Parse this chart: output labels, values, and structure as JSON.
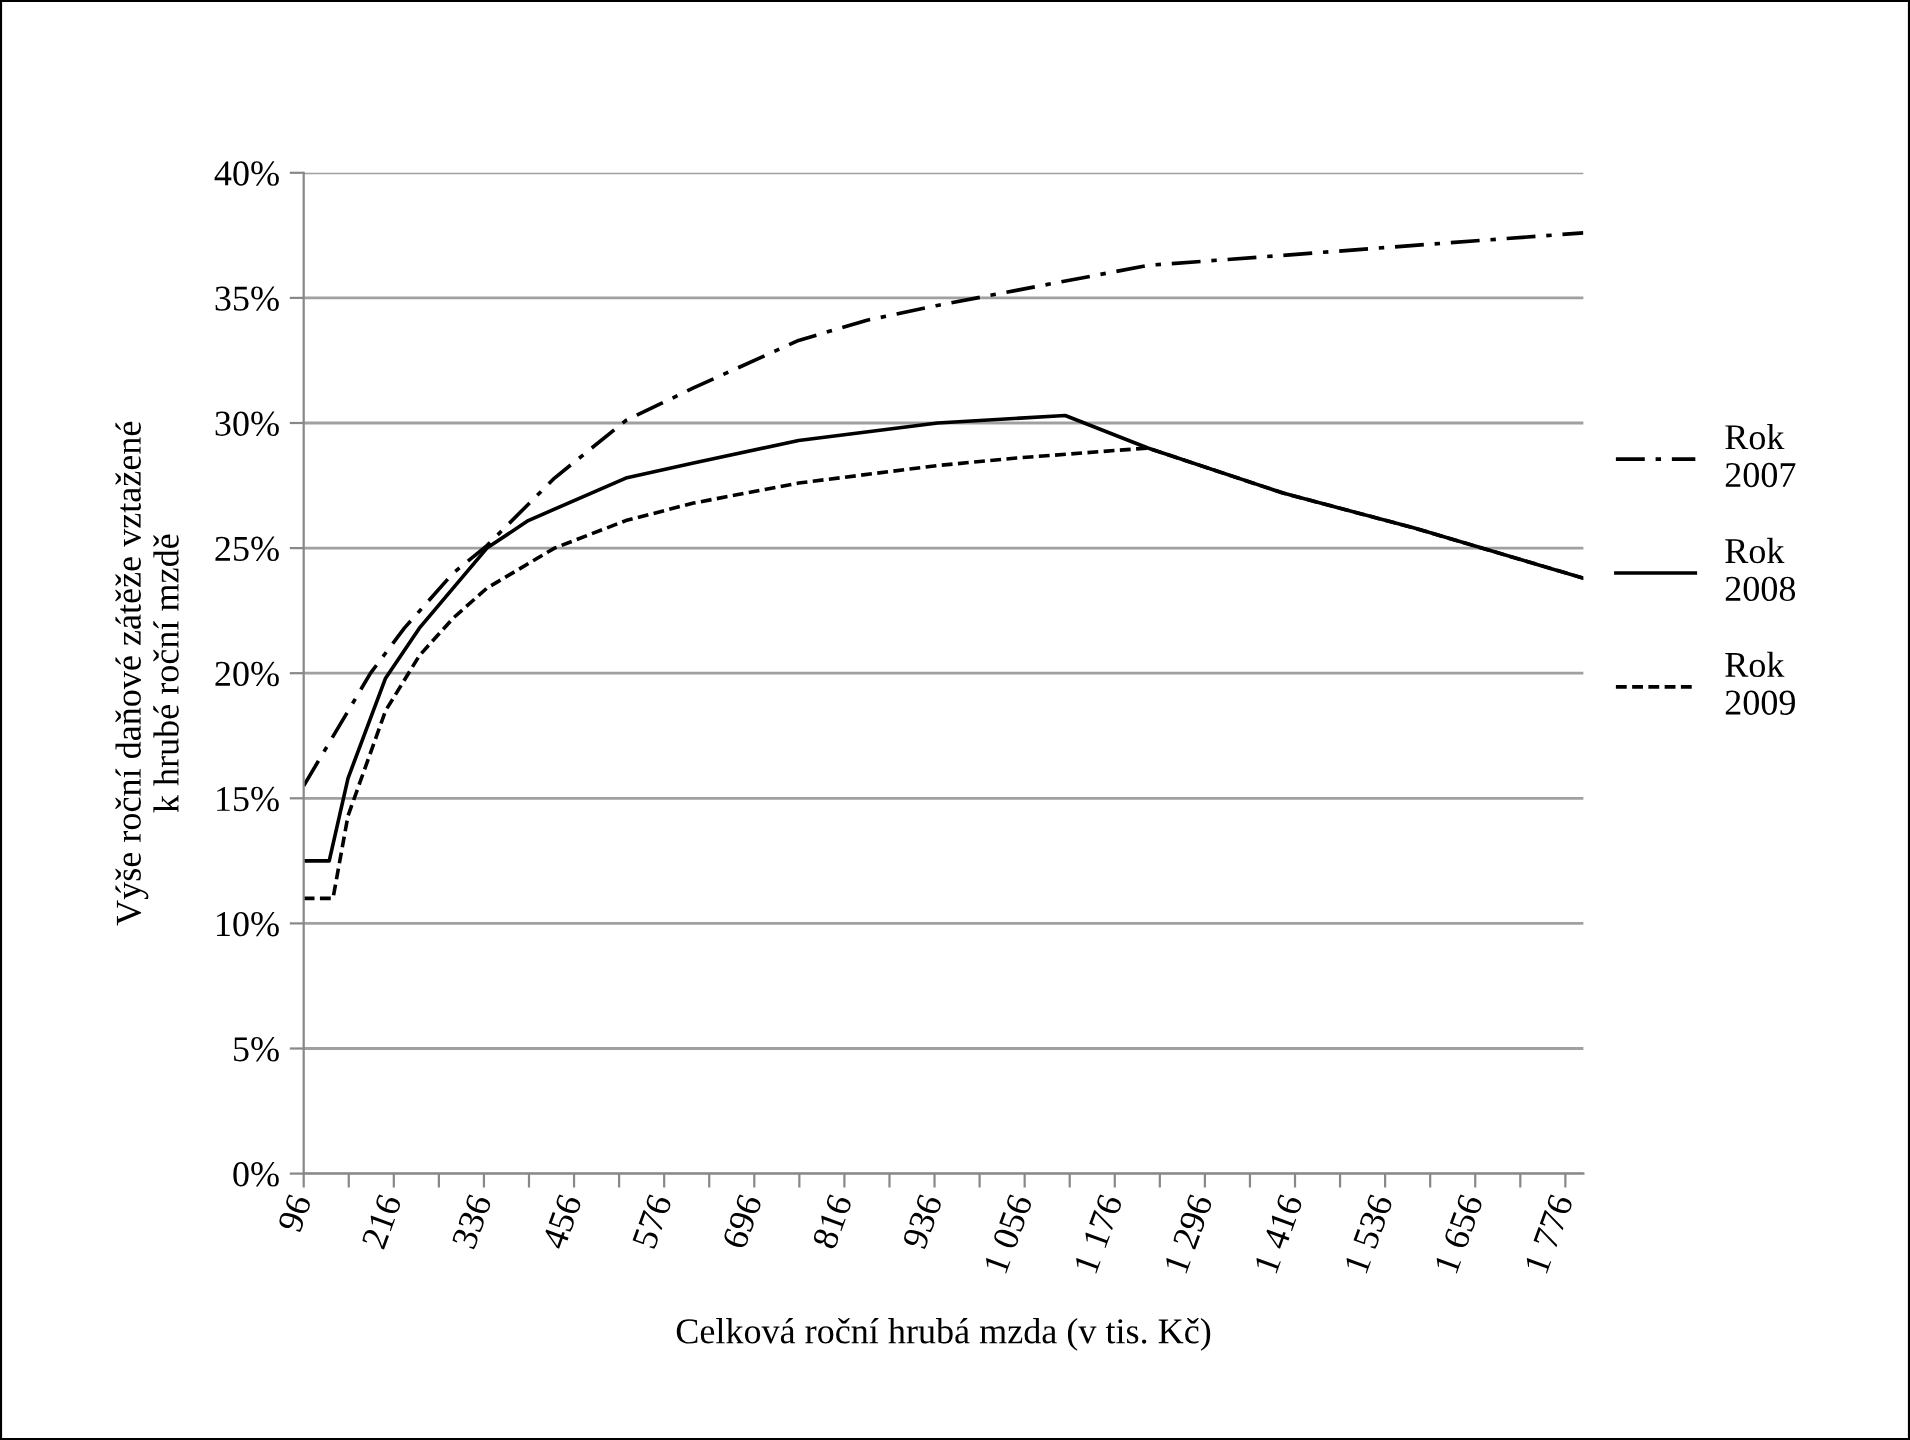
{
  "chart_data": {
    "type": "line",
    "xlabel": "Celková roční hrubá mzda (v tis. Kč)",
    "ylabel": "Výše roční daňové zátěže vztažené\nk hrubé roční mzdě",
    "xlim": [
      96,
      1800
    ],
    "ylim": [
      0,
      40
    ],
    "xticks": [
      96,
      {
        "value": 156,
        "label": null
      },
      216,
      {
        "value": 276,
        "label": null
      },
      336,
      {
        "value": 396,
        "label": null
      },
      456,
      {
        "value": 516,
        "label": null
      },
      576,
      {
        "value": 636,
        "label": null
      },
      696,
      {
        "value": 756,
        "label": null
      },
      816,
      {
        "value": 876,
        "label": null
      },
      936,
      {
        "value": 996,
        "label": null
      },
      {
        "value": 1056,
        "label": "1 056"
      },
      {
        "value": 1116,
        "label": null
      },
      {
        "value": 1176,
        "label": "1 176"
      },
      {
        "value": 1236,
        "label": null
      },
      {
        "value": 1296,
        "label": "1 296"
      },
      {
        "value": 1356,
        "label": null
      },
      {
        "value": 1416,
        "label": "1 416"
      },
      {
        "value": 1476,
        "label": null
      },
      {
        "value": 1536,
        "label": "1 536"
      },
      {
        "value": 1596,
        "label": null
      },
      {
        "value": 1656,
        "label": "1 656"
      },
      {
        "value": 1716,
        "label": null
      },
      {
        "value": 1776,
        "label": "1 776"
      }
    ],
    "yticks": [
      {
        "value": 0,
        "label": "0%"
      },
      {
        "value": 5,
        "label": "5%"
      },
      {
        "value": 10,
        "label": "10%"
      },
      {
        "value": 15,
        "label": "15%"
      },
      {
        "value": 20,
        "label": "20%"
      },
      {
        "value": 25,
        "label": "25%"
      },
      {
        "value": 30,
        "label": "30%"
      },
      {
        "value": 35,
        "label": "35%"
      },
      {
        "value": 40,
        "label": "40%"
      }
    ],
    "grid": "y",
    "legend": "right",
    "marker": "none",
    "series": [
      {
        "name": "Rok\n2007",
        "color": "#000000",
        "line_style": "dashdot",
        "x": [
          96,
          185,
          230,
          295,
          340,
          430,
          525,
          615,
          755,
          845,
          940,
          1045,
          1220,
          1400,
          1575,
          1800
        ],
        "values": [
          15.5,
          20.0,
          21.8,
          24.0,
          25.1,
          27.8,
          30.1,
          31.4,
          33.3,
          34.1,
          34.7,
          35.3,
          36.3,
          36.7,
          37.1,
          37.6
        ]
      },
      {
        "name": "Rok\n2008",
        "color": "#000000",
        "line_style": "solid",
        "x": [
          96,
          130,
          155,
          205,
          250,
          340,
          395,
          525,
          615,
          755,
          940,
          1110,
          1220,
          1400,
          1575,
          1800
        ],
        "values": [
          12.5,
          12.5,
          15.8,
          19.8,
          21.8,
          25.0,
          26.1,
          27.8,
          28.4,
          29.3,
          30.0,
          30.3,
          29.0,
          27.2,
          25.8,
          23.8
        ]
      },
      {
        "name": "Rok\n2009",
        "color": "#000000",
        "line_style": "dashed",
        "x": [
          96,
          135,
          155,
          205,
          250,
          295,
          340,
          430,
          525,
          615,
          755,
          940,
          1045,
          1220,
          1400,
          1575,
          1800
        ],
        "values": [
          11.0,
          11.0,
          14.3,
          18.5,
          20.7,
          22.2,
          23.4,
          25.0,
          26.1,
          26.8,
          27.6,
          28.3,
          28.6,
          29.0,
          27.2,
          25.8,
          23.8
        ]
      }
    ]
  }
}
